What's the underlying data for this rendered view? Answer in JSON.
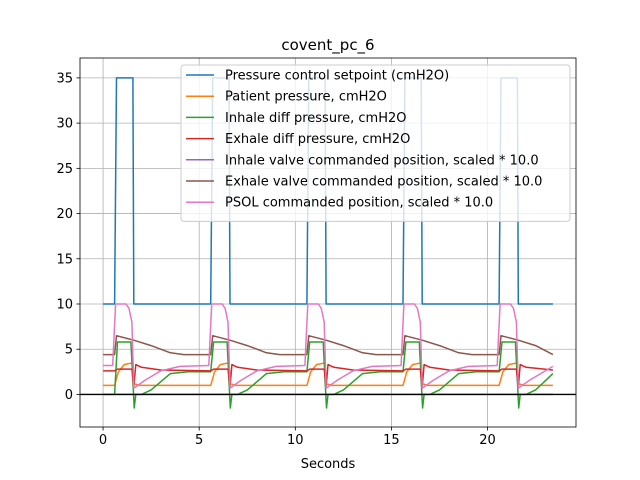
{
  "chart_data": {
    "type": "line",
    "title": "covent_pc_6",
    "xlabel": "Seconds",
    "ylabel": "",
    "xlim": [
      -1.2,
      24.6
    ],
    "ylim": [
      -3.6,
      37.2
    ],
    "xticks": [
      0,
      5,
      10,
      15,
      20
    ],
    "yticks": [
      0,
      5,
      10,
      15,
      20,
      25,
      30,
      35
    ],
    "grid": true,
    "zero_line": true,
    "legend_placement": "upper right",
    "breath_period_s": 5.0,
    "breath_starts_s": [
      0.6,
      5.6,
      10.6,
      15.6,
      20.6
    ],
    "duration_s": [
      0,
      23.4
    ],
    "series": [
      {
        "name": "Pressure control setpoint (cmH2O)",
        "color": "#1f77b4",
        "points": [
          [
            0,
            10
          ],
          [
            0.6,
            10
          ],
          [
            0.7,
            35
          ],
          [
            1.55,
            35
          ],
          [
            1.6,
            10
          ],
          [
            5.6,
            10
          ],
          [
            5.7,
            35
          ],
          [
            6.55,
            35
          ],
          [
            6.6,
            10
          ],
          [
            10.6,
            10
          ],
          [
            10.7,
            35
          ],
          [
            11.55,
            35
          ],
          [
            11.6,
            10
          ],
          [
            15.6,
            10
          ],
          [
            15.7,
            35
          ],
          [
            16.55,
            35
          ],
          [
            16.6,
            10
          ],
          [
            20.6,
            10
          ],
          [
            20.7,
            35
          ],
          [
            21.55,
            35
          ],
          [
            21.6,
            10
          ],
          [
            23.4,
            10
          ]
        ]
      },
      {
        "name": "Patient pressure, cmH2O",
        "color": "#ff7f0e",
        "points": [
          [
            0,
            1
          ],
          [
            0.6,
            1
          ],
          [
            0.8,
            2.5
          ],
          [
            1.1,
            3.3
          ],
          [
            1.55,
            3.5
          ],
          [
            1.6,
            1.2
          ],
          [
            1.9,
            1
          ],
          [
            5.6,
            1
          ],
          [
            5.8,
            2.5
          ],
          [
            6.1,
            3.3
          ],
          [
            6.55,
            3.5
          ],
          [
            6.6,
            1.2
          ],
          [
            6.9,
            1
          ],
          [
            10.6,
            1
          ],
          [
            10.8,
            2.5
          ],
          [
            11.1,
            3.3
          ],
          [
            11.55,
            3.5
          ],
          [
            11.6,
            1.2
          ],
          [
            11.9,
            1
          ],
          [
            15.6,
            1
          ],
          [
            15.8,
            2.5
          ],
          [
            16.1,
            3.3
          ],
          [
            16.55,
            3.5
          ],
          [
            16.6,
            1.2
          ],
          [
            16.9,
            1
          ],
          [
            20.6,
            1
          ],
          [
            20.8,
            2.5
          ],
          [
            21.1,
            3.3
          ],
          [
            21.55,
            3.5
          ],
          [
            21.6,
            1.2
          ],
          [
            21.9,
            1
          ],
          [
            23.4,
            1
          ]
        ]
      },
      {
        "name": "Inhale diff pressure, cmH2O",
        "color": "#2ca02c",
        "points": [
          [
            0,
            0
          ],
          [
            0.6,
            0
          ],
          [
            0.75,
            5.8
          ],
          [
            1.45,
            5.8
          ],
          [
            1.55,
            1.5
          ],
          [
            1.62,
            -1.5
          ],
          [
            1.7,
            0
          ],
          [
            2.0,
            0
          ],
          [
            2.5,
            0.5
          ],
          [
            3.5,
            2.3
          ],
          [
            4.4,
            2.5
          ],
          [
            5.6,
            2.5
          ],
          [
            5.75,
            5.8
          ],
          [
            6.45,
            5.8
          ],
          [
            6.55,
            1.5
          ],
          [
            6.62,
            -1.5
          ],
          [
            6.7,
            0
          ],
          [
            7.0,
            0
          ],
          [
            7.5,
            0.5
          ],
          [
            8.5,
            2.3
          ],
          [
            9.4,
            2.5
          ],
          [
            10.6,
            2.5
          ],
          [
            10.75,
            5.8
          ],
          [
            11.45,
            5.8
          ],
          [
            11.55,
            1.5
          ],
          [
            11.62,
            -1.5
          ],
          [
            11.7,
            0
          ],
          [
            12.0,
            0
          ],
          [
            12.5,
            0.5
          ],
          [
            13.5,
            2.3
          ],
          [
            14.4,
            2.5
          ],
          [
            15.6,
            2.5
          ],
          [
            15.75,
            5.8
          ],
          [
            16.45,
            5.8
          ],
          [
            16.55,
            1.5
          ],
          [
            16.62,
            -1.5
          ],
          [
            16.7,
            0
          ],
          [
            17.0,
            0
          ],
          [
            17.5,
            0.5
          ],
          [
            18.5,
            2.3
          ],
          [
            19.4,
            2.5
          ],
          [
            20.6,
            2.5
          ],
          [
            20.75,
            5.8
          ],
          [
            21.45,
            5.8
          ],
          [
            21.55,
            1.5
          ],
          [
            21.62,
            -1.5
          ],
          [
            21.7,
            0
          ],
          [
            22.0,
            0
          ],
          [
            22.5,
            0.5
          ],
          [
            23.4,
            2.3
          ]
        ]
      },
      {
        "name": "Exhale diff pressure, cmH2O",
        "color": "#d62728",
        "points": [
          [
            0,
            2.6
          ],
          [
            0.6,
            2.6
          ],
          [
            0.75,
            2.8
          ],
          [
            1.5,
            2.8
          ],
          [
            1.6,
            0.8
          ],
          [
            1.7,
            3.3
          ],
          [
            2.0,
            3.0
          ],
          [
            3.0,
            2.7
          ],
          [
            5.6,
            2.6
          ],
          [
            5.75,
            2.8
          ],
          [
            6.5,
            2.8
          ],
          [
            6.6,
            0.8
          ],
          [
            6.7,
            3.3
          ],
          [
            7.0,
            3.0
          ],
          [
            8.0,
            2.7
          ],
          [
            10.6,
            2.6
          ],
          [
            10.75,
            2.8
          ],
          [
            11.5,
            2.8
          ],
          [
            11.6,
            0.8
          ],
          [
            11.7,
            3.3
          ],
          [
            12.0,
            3.0
          ],
          [
            13.0,
            2.7
          ],
          [
            15.6,
            2.6
          ],
          [
            15.75,
            2.8
          ],
          [
            16.5,
            2.8
          ],
          [
            16.6,
            0.8
          ],
          [
            16.7,
            3.3
          ],
          [
            17.0,
            3.0
          ],
          [
            18.0,
            2.7
          ],
          [
            20.6,
            2.6
          ],
          [
            20.75,
            2.8
          ],
          [
            21.5,
            2.8
          ],
          [
            21.6,
            0.8
          ],
          [
            21.7,
            3.3
          ],
          [
            22.0,
            3.0
          ],
          [
            23.4,
            2.7
          ]
        ]
      },
      {
        "name": "Inhale valve commanded position, scaled * 10.0",
        "color": "#9467bd",
        "points": [
          [
            0,
            0
          ],
          [
            23.4,
            0
          ]
        ]
      },
      {
        "name": "Exhale valve commanded position, scaled * 10.0",
        "color": "#8c564b",
        "points": [
          [
            0,
            4.4
          ],
          [
            0.6,
            4.4
          ],
          [
            0.7,
            6.5
          ],
          [
            1.6,
            6.0
          ],
          [
            2.5,
            5.4
          ],
          [
            3.5,
            4.6
          ],
          [
            4.2,
            4.4
          ],
          [
            5.6,
            4.4
          ],
          [
            5.7,
            6.5
          ],
          [
            6.6,
            6.0
          ],
          [
            7.5,
            5.4
          ],
          [
            8.5,
            4.6
          ],
          [
            9.2,
            4.4
          ],
          [
            10.6,
            4.4
          ],
          [
            10.7,
            6.5
          ],
          [
            11.6,
            6.0
          ],
          [
            12.5,
            5.4
          ],
          [
            13.5,
            4.6
          ],
          [
            14.2,
            4.4
          ],
          [
            15.6,
            4.4
          ],
          [
            15.7,
            6.5
          ],
          [
            16.6,
            6.0
          ],
          [
            17.5,
            5.4
          ],
          [
            18.5,
            4.6
          ],
          [
            19.2,
            4.4
          ],
          [
            20.6,
            4.4
          ],
          [
            20.7,
            6.5
          ],
          [
            21.6,
            6.0
          ],
          [
            22.5,
            5.4
          ],
          [
            23.4,
            4.4
          ]
        ]
      },
      {
        "name": "PSOL commanded position, scaled * 10.0",
        "color": "#e377c2",
        "points": [
          [
            0,
            3.2
          ],
          [
            0.5,
            3.2
          ],
          [
            0.65,
            10
          ],
          [
            1.2,
            10
          ],
          [
            1.35,
            9.5
          ],
          [
            1.5,
            8.0
          ],
          [
            1.6,
            0.7
          ],
          [
            2.2,
            1.6
          ],
          [
            3.0,
            2.6
          ],
          [
            4.0,
            3.1
          ],
          [
            5.5,
            3.2
          ],
          [
            5.65,
            10
          ],
          [
            6.2,
            10
          ],
          [
            6.35,
            9.5
          ],
          [
            6.5,
            8.0
          ],
          [
            6.6,
            0.7
          ],
          [
            7.2,
            1.6
          ],
          [
            8.0,
            2.6
          ],
          [
            9.0,
            3.1
          ],
          [
            10.5,
            3.2
          ],
          [
            10.65,
            10
          ],
          [
            11.2,
            10
          ],
          [
            11.35,
            9.5
          ],
          [
            11.5,
            8.0
          ],
          [
            11.6,
            0.7
          ],
          [
            12.2,
            1.6
          ],
          [
            13.0,
            2.6
          ],
          [
            14.0,
            3.1
          ],
          [
            15.5,
            3.2
          ],
          [
            15.65,
            10
          ],
          [
            16.2,
            10
          ],
          [
            16.35,
            9.5
          ],
          [
            16.5,
            8.0
          ],
          [
            16.6,
            0.7
          ],
          [
            17.2,
            1.6
          ],
          [
            18.0,
            2.6
          ],
          [
            19.0,
            3.1
          ],
          [
            20.5,
            3.2
          ],
          [
            20.65,
            10
          ],
          [
            21.2,
            10
          ],
          [
            21.35,
            9.5
          ],
          [
            21.5,
            8.0
          ],
          [
            21.6,
            0.7
          ],
          [
            22.2,
            1.6
          ],
          [
            23.4,
            3.1
          ]
        ]
      }
    ]
  }
}
